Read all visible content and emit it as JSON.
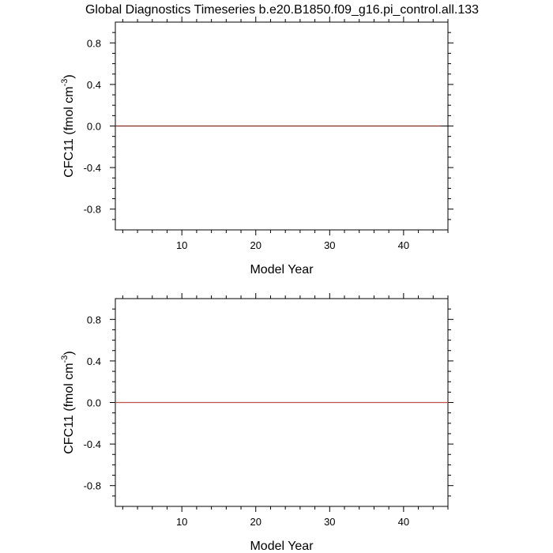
{
  "chart_data": [
    {
      "type": "line",
      "title": "Global Diagnostics Timeseries b.e20.B1850.f09_g16.pi_control.all.133",
      "xlabel": "Model Year",
      "ylabel": {
        "text": "CFC11 (fmol cm",
        "superscript": "-3",
        "suffix": ")"
      },
      "x": [
        1,
        2,
        3,
        4,
        5,
        6,
        7,
        8,
        9,
        10,
        11,
        12,
        13,
        14,
        15,
        16,
        17,
        18,
        19,
        20,
        21,
        22,
        23,
        24,
        25,
        26,
        27,
        28,
        29,
        30,
        31,
        32,
        33,
        34,
        35,
        36,
        37,
        38,
        39,
        40,
        41,
        42,
        43,
        44,
        45
      ],
      "series": [
        {
          "color": "#7f2a1e",
          "values": [
            0,
            0,
            0,
            0,
            0,
            0,
            0,
            0,
            0,
            0,
            0,
            0,
            0,
            0,
            0,
            0,
            0,
            0,
            0,
            0,
            0,
            0,
            0,
            0,
            0,
            0,
            0,
            0,
            0,
            0,
            0,
            0,
            0,
            0,
            0,
            0,
            0,
            0,
            0,
            0,
            0,
            0,
            0,
            0,
            0
          ]
        }
      ],
      "reference_line": 0,
      "xlim": [
        1,
        46
      ],
      "ylim": [
        -1,
        1
      ],
      "xticks": [
        10,
        20,
        30,
        40
      ],
      "yticks": [
        0.8,
        0.4,
        {
          "value": 0,
          "label": "0.0"
        },
        -0.4,
        -0.8
      ],
      "xminorticks": [
        2,
        4,
        6,
        8,
        12,
        14,
        16,
        18,
        22,
        24,
        26,
        28,
        32,
        34,
        36,
        38,
        42,
        44,
        46
      ],
      "yminorticks": [
        -0.9,
        -0.7,
        -0.6,
        -0.5,
        -0.3,
        -0.2,
        -0.1,
        0.1,
        0.2,
        0.3,
        0.5,
        0.6,
        0.7,
        0.9
      ]
    },
    {
      "type": "line",
      "xlabel": "Model Year",
      "ylabel": {
        "text": "CFC11 (fmol cm",
        "superscript": "-3",
        "suffix": ")"
      },
      "x": [
        1,
        2,
        3,
        4,
        5,
        6,
        7,
        8,
        9,
        10,
        11,
        12,
        13,
        14,
        15,
        16,
        17,
        18,
        19,
        20,
        21,
        22,
        23,
        24,
        25,
        26,
        27,
        28,
        29,
        30,
        31,
        32,
        33,
        34,
        35,
        36,
        37,
        38,
        39,
        40,
        41,
        42,
        43,
        44,
        45,
        46
      ],
      "series": [
        {
          "color": "#c0504d",
          "values": [
            0,
            0,
            0,
            0,
            0,
            0,
            0,
            0,
            0,
            0,
            0,
            0,
            0,
            0,
            0,
            0,
            0,
            0,
            0,
            0,
            0,
            0,
            0,
            0,
            0,
            0,
            0,
            0,
            0,
            0,
            0,
            0,
            0,
            0,
            0,
            0,
            0,
            0,
            0,
            0,
            0,
            0,
            0,
            0,
            0,
            0
          ]
        }
      ],
      "reference_line": 0,
      "xlim": [
        1,
        46
      ],
      "ylim": [
        -1,
        1
      ],
      "xticks": [
        10,
        20,
        30,
        40
      ],
      "yticks": [
        0.8,
        0.4,
        {
          "value": 0,
          "label": "0.0"
        },
        -0.4,
        -0.8
      ],
      "xminorticks": [
        2,
        4,
        6,
        8,
        12,
        14,
        16,
        18,
        22,
        24,
        26,
        28,
        32,
        34,
        36,
        38,
        42,
        44,
        46
      ],
      "yminorticks": [
        -0.9,
        -0.7,
        -0.6,
        -0.5,
        -0.3,
        -0.2,
        -0.1,
        0.1,
        0.2,
        0.3,
        0.5,
        0.6,
        0.7,
        0.9
      ]
    }
  ]
}
